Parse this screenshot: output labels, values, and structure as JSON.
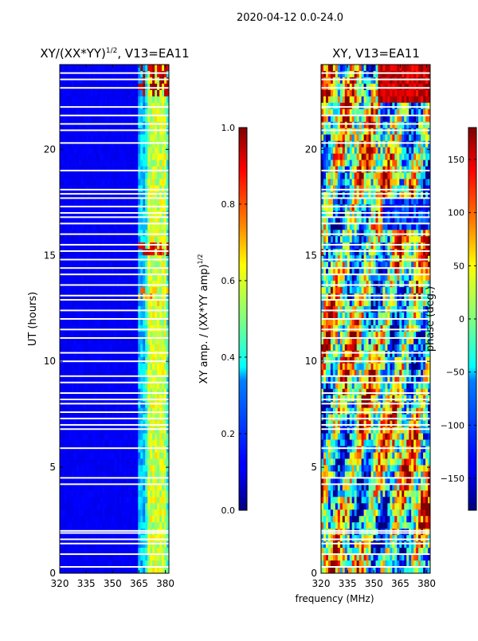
{
  "figure": {
    "suptitle": "2020-04-12 0.0-24.0"
  },
  "chart_data": [
    {
      "type": "heatmap",
      "title_main": "XY/(XX*YY)",
      "title_sup": "1/2",
      "title_tail": ", V13=EA11",
      "ylabel": "UT (hours)",
      "xlabel": "",
      "xlim": [
        320,
        382
      ],
      "ylim": [
        0,
        24
      ],
      "xticks": [
        "320",
        "335",
        "350",
        "365",
        "380"
      ],
      "xtick_values": [
        320,
        335,
        350,
        365,
        380
      ],
      "yticks": [
        "0",
        "5",
        "10",
        "15",
        "20"
      ],
      "ytick_values": [
        0,
        5,
        10,
        15,
        20
      ],
      "colorbar": {
        "label_main": "XY amp. / (XX*YY amp)",
        "label_sup": "1/2",
        "range": [
          0.0,
          1.0
        ],
        "ticks": [
          "0.0",
          "0.2",
          "0.4",
          "0.6",
          "0.8",
          "1.0"
        ],
        "tick_values": [
          0.0,
          0.2,
          0.4,
          0.6,
          0.8,
          1.0
        ]
      },
      "colormap": "jet",
      "flagged_hours": [
        0.3,
        0.9,
        1.4,
        1.6,
        1.9,
        2.0,
        4.2,
        4.5,
        5.9,
        6.8,
        7.0,
        7.3,
        7.6,
        8.0,
        8.2,
        8.5,
        9.0,
        9.3,
        10.0,
        10.4,
        11.1,
        11.5,
        12.0,
        12.4,
        12.9,
        13.1,
        13.6,
        14.1,
        14.4,
        14.8,
        15.2,
        15.5,
        16.0,
        16.5,
        16.8,
        17.0,
        17.3,
        17.7,
        17.9,
        18.1,
        19.0,
        20.3,
        20.9,
        21.2,
        21.6,
        22.0,
        22.9,
        23.3,
        23.6
      ]
    },
    {
      "type": "heatmap",
      "title": "XY, V13=EA11",
      "ylabel": "",
      "xlabel": "frequency (MHz)",
      "xlim": [
        320,
        382
      ],
      "ylim": [
        0,
        24
      ],
      "xticks": [
        "320",
        "335",
        "350",
        "365",
        "380"
      ],
      "xtick_values": [
        320,
        335,
        350,
        365,
        380
      ],
      "yticks": [
        "0",
        "5",
        "10",
        "15",
        "20"
      ],
      "ytick_values": [
        0,
        5,
        10,
        15,
        20
      ],
      "colorbar": {
        "label": "phase (deg.)",
        "range": [
          -180,
          180
        ],
        "ticks": [
          "−150",
          "−100",
          "−50",
          "0",
          "50",
          "100",
          "150"
        ],
        "tick_values": [
          -150,
          -100,
          -50,
          0,
          50,
          100,
          150
        ]
      },
      "colormap": "jet",
      "flagged_hours": [
        0.3,
        0.9,
        1.4,
        1.6,
        1.9,
        2.0,
        4.2,
        4.5,
        5.9,
        6.8,
        7.0,
        7.3,
        7.6,
        8.0,
        8.2,
        8.5,
        9.0,
        9.3,
        10.0,
        10.4,
        11.1,
        11.5,
        12.0,
        12.4,
        12.9,
        13.1,
        13.6,
        14.1,
        14.4,
        14.8,
        15.2,
        15.5,
        16.0,
        16.5,
        16.8,
        17.0,
        17.3,
        17.7,
        17.9,
        18.1,
        19.0,
        20.3,
        20.9,
        21.2,
        21.6,
        22.0,
        22.9,
        23.3,
        23.6
      ]
    }
  ]
}
